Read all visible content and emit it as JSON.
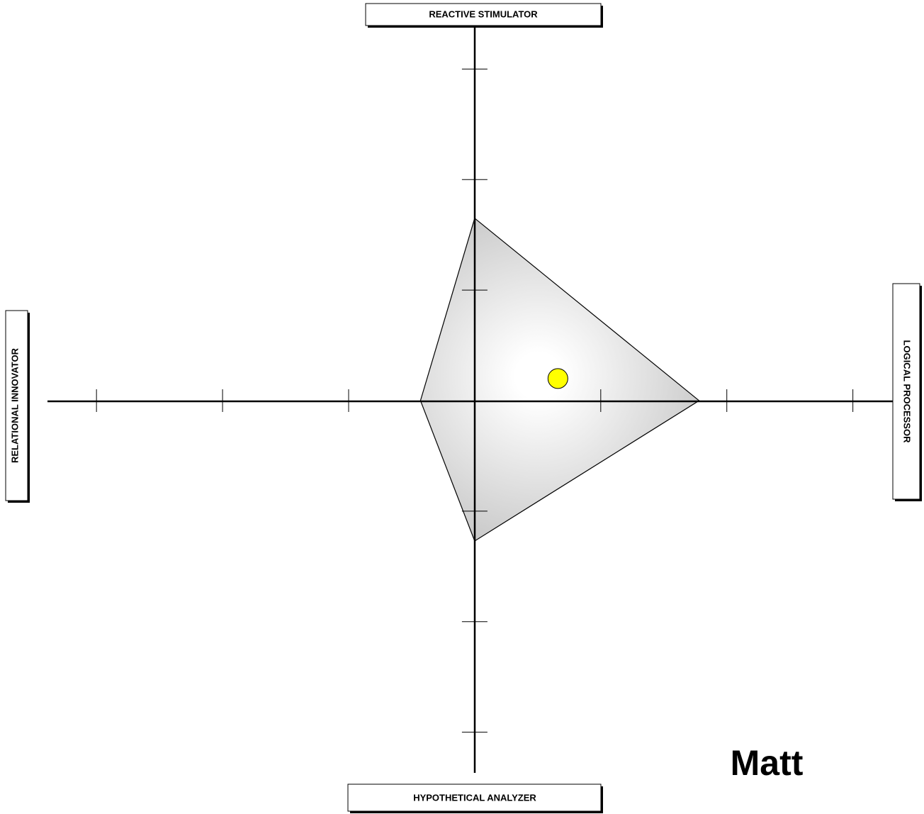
{
  "chart_data": {
    "type": "quadrant",
    "categories": [
      "REACTIVE STIMULATOR",
      "LOGICAL PROCESSOR",
      "HYPOTHETICAL ANALYZER",
      "RELATIONAL INNOVATOR"
    ],
    "values": [
      1.65,
      1.78,
      1.27,
      0.43
    ],
    "point": {
      "x": 0.66,
      "y": 0.2
    },
    "name": "Matt",
    "xlim": [
      -3.4,
      3.3
    ],
    "ylim": [
      -3.4,
      3.4
    ],
    "xticks": [
      -3,
      -2,
      -1,
      1,
      2,
      3
    ],
    "yticks": [
      -3,
      -2,
      -1,
      1,
      2,
      3
    ],
    "fill_edge": "#b4b4b4",
    "fill_center": "#ffffff",
    "point_color": "#ffff00"
  }
}
